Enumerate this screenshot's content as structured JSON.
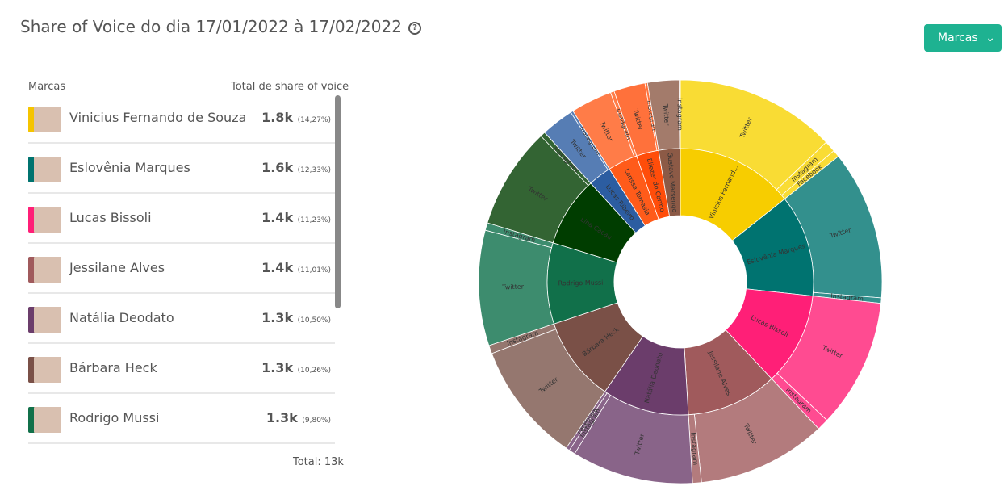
{
  "header": {
    "title": "Share of Voice do dia 17/01/2022 à 17/02/2022",
    "help": "?",
    "button": "Marcas"
  },
  "list": {
    "col_name": "Marcas",
    "col_total": "Total de share of voice",
    "footer": "Total: 13k",
    "rows": [
      {
        "name": "Vinicius Fernando de Souza",
        "value": "1.8k",
        "share": "(14,27%)",
        "color": "#f5c400"
      },
      {
        "name": "Eslovênia Marques",
        "value": "1.6k",
        "share": "(12,33%)",
        "color": "#00736f"
      },
      {
        "name": "Lucas Bissoli",
        "value": "1.4k",
        "share": "(11,23%)",
        "color": "#ff1f77"
      },
      {
        "name": "Jessilane Alves",
        "value": "1.4k",
        "share": "(11,01%)",
        "color": "#a05a5c"
      },
      {
        "name": "Natália Deodato",
        "value": "1.3k",
        "share": "(10,50%)",
        "color": "#6b3d6b"
      },
      {
        "name": "Bárbara Heck",
        "value": "1.3k",
        "share": "(10,26%)",
        "color": "#7a5047"
      },
      {
        "name": "Rodrigo Mussi",
        "value": "1.3k",
        "share": "(9,80%)",
        "color": "#11704a"
      }
    ]
  },
  "chart_data": {
    "type": "sunburst",
    "series": [
      {
        "name": "Vinicius Fernand...",
        "color": "#f7cd00",
        "outer_color": "#f9dc34",
        "children": [
          {
            "name": "Twitter",
            "value": 12.8
          },
          {
            "name": "Instagram",
            "value": 0.9
          },
          {
            "name": "Facebook",
            "value": 0.57
          }
        ]
      },
      {
        "name": "Eslovênia Marques",
        "color": "#007370",
        "outer_color": "#33908d",
        "children": [
          {
            "name": "Twitter",
            "value": 11.9
          },
          {
            "name": "Instagram",
            "value": 0.43
          }
        ]
      },
      {
        "name": "Lucas Bissoli",
        "color": "#ff1f77",
        "outer_color": "#ff4b91",
        "children": [
          {
            "name": "Twitter",
            "value": 10.3
          },
          {
            "name": "Instagram",
            "value": 0.93
          }
        ]
      },
      {
        "name": "Jessilane Alves",
        "color": "#a05a5c",
        "outer_color": "#b37b7d",
        "children": [
          {
            "name": "Twitter",
            "value": 10.3
          },
          {
            "name": "Instagram",
            "value": 0.71
          }
        ]
      },
      {
        "name": "Natália Deodato",
        "color": "#6b3d6b",
        "outer_color": "#896489",
        "children": [
          {
            "name": "Twitter",
            "value": 9.7
          },
          {
            "name": "Instagram",
            "value": 0.5
          },
          {
            "name": "Facebook",
            "value": 0.3
          }
        ]
      },
      {
        "name": "Bárbara Heck",
        "color": "#7a5047",
        "outer_color": "#95776f",
        "children": [
          {
            "name": "Twitter",
            "value": 9.6
          },
          {
            "name": "Instagram",
            "value": 0.66
          }
        ]
      },
      {
        "name": "Rodrigo Mussi",
        "color": "#11704a",
        "outer_color": "#3d8c6e",
        "children": [
          {
            "name": "Twitter",
            "value": 9.2
          },
          {
            "name": "Instagram",
            "value": 0.6
          }
        ]
      },
      {
        "name": "Lina Cacau",
        "color": "#003d00",
        "outer_color": "#336433",
        "children": [
          {
            "name": "Twitter",
            "value": 8.1
          },
          {
            "name": "Instagram",
            "value": 0.4
          }
        ]
      },
      {
        "name": "Lucas Ribeiro",
        "color": "#2c5da1",
        "outer_color": "#567db4",
        "children": [
          {
            "name": "Twitter",
            "value": 2.6
          },
          {
            "name": "Instagram",
            "value": 0.2
          }
        ]
      },
      {
        "name": "Larissa Tomasia",
        "color": "#ff5b1a",
        "outer_color": "#ff7c48",
        "children": [
          {
            "name": "Twitter",
            "value": 3.3
          },
          {
            "name": "Instagram",
            "value": 0.3
          }
        ]
      },
      {
        "name": "Eliezer do Carmo",
        "color": "#ff4d0a",
        "outer_color": "#ff713b",
        "children": [
          {
            "name": "Twitter",
            "value": 2.5
          },
          {
            "name": "Instagram",
            "value": 0.2
          }
        ]
      },
      {
        "name": "Gustavo Marsengo",
        "color": "#8c5a46",
        "outer_color": "#a37b6b",
        "children": [
          {
            "name": "Twitter",
            "value": 2.5
          },
          {
            "name": "Instagram",
            "value": 0.1
          }
        ]
      }
    ]
  }
}
